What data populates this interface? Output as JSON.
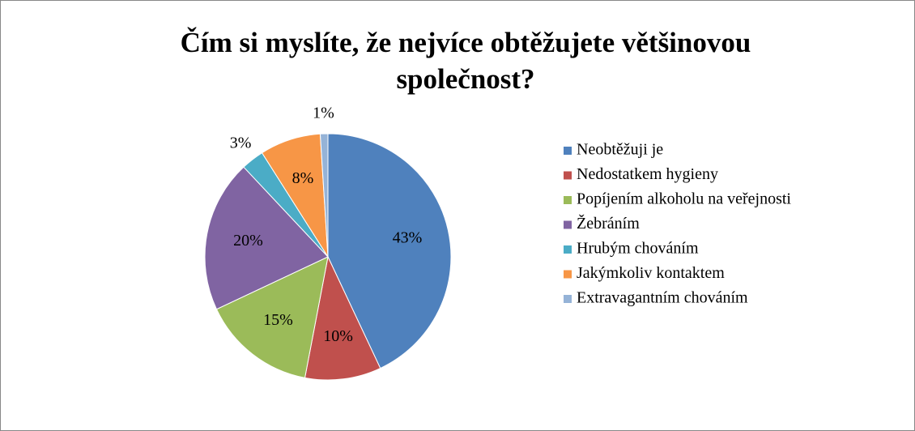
{
  "chart_data": {
    "type": "pie",
    "title": "Čím si myslíte, že nejvíce obtěžujete většinovou společnost?",
    "categories": [
      "Neobtěžuji je",
      "Nedostatkem hygieny",
      "Popíjením alkoholu na veřejnosti",
      "Žebráním",
      "Hrubým chováním",
      "Jakýmkoliv kontaktem",
      "Extravagantním chováním"
    ],
    "values": [
      43,
      10,
      15,
      20,
      3,
      8,
      1
    ],
    "value_labels": [
      "43%",
      "10%",
      "15%",
      "20%",
      "3%",
      "8%",
      "1%"
    ],
    "colors": [
      "#4f81bd",
      "#c0504d",
      "#9bbb59",
      "#8064a2",
      "#4bacc6",
      "#f79646",
      "#95b3d7"
    ],
    "legend": "right"
  }
}
